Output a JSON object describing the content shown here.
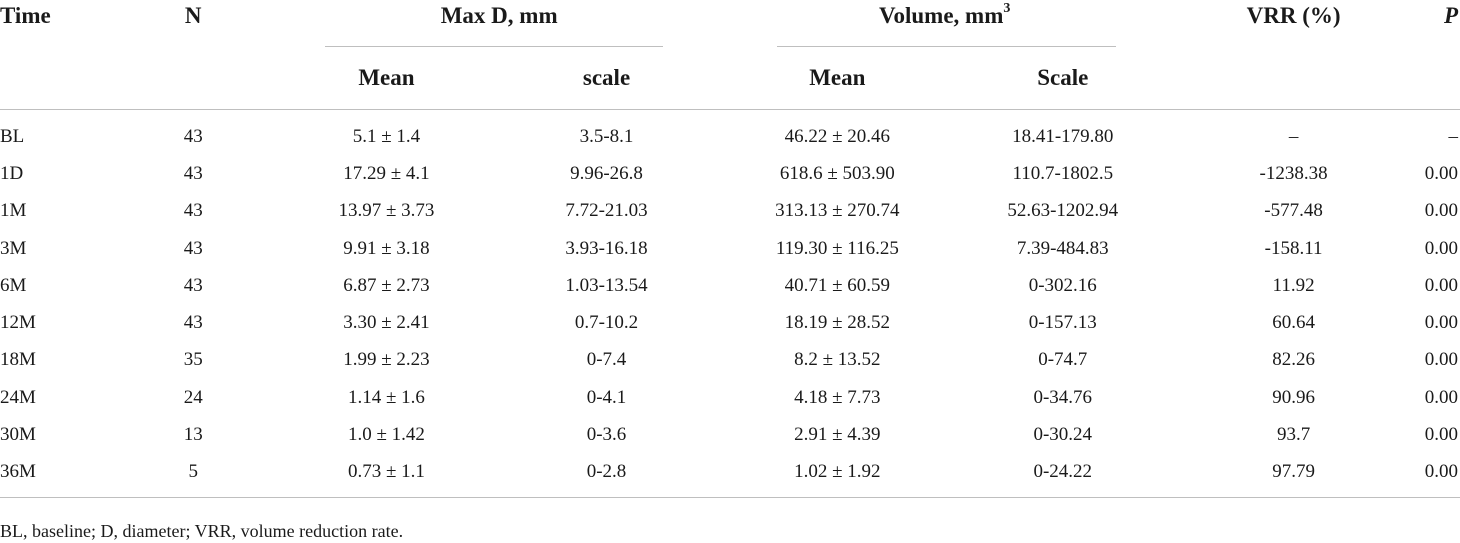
{
  "table": {
    "headers": {
      "time": "Time",
      "n": "N",
      "max_d_group": "Max D, mm",
      "volume_group": "Volume, mm",
      "volume_group_sup": "3",
      "vrr": "VRR (%)",
      "p": "P",
      "max_d_mean": "Mean",
      "max_d_scale": "scale",
      "volume_mean": "Mean",
      "volume_scale": "Scale"
    },
    "rows": [
      {
        "time": "BL",
        "n": "43",
        "max_d_mean": "5.1 ± 1.4",
        "max_d_scale": "3.5-8.1",
        "volume_mean": "46.22 ± 20.46",
        "volume_scale": "18.41-179.80",
        "vrr": "–",
        "p": "–"
      },
      {
        "time": "1D",
        "n": "43",
        "max_d_mean": "17.29 ± 4.1",
        "max_d_scale": "9.96-26.8",
        "volume_mean": "618.6 ± 503.90",
        "volume_scale": "110.7-1802.5",
        "vrr": "-1238.38",
        "p": "0.00"
      },
      {
        "time": "1M",
        "n": "43",
        "max_d_mean": "13.97 ± 3.73",
        "max_d_scale": "7.72-21.03",
        "volume_mean": "313.13 ± 270.74",
        "volume_scale": "52.63-1202.94",
        "vrr": "-577.48",
        "p": "0.00"
      },
      {
        "time": "3M",
        "n": "43",
        "max_d_mean": "9.91 ± 3.18",
        "max_d_scale": "3.93-16.18",
        "volume_mean": "119.30 ± 116.25",
        "volume_scale": "7.39-484.83",
        "vrr": "-158.11",
        "p": "0.00"
      },
      {
        "time": "6M",
        "n": "43",
        "max_d_mean": "6.87 ± 2.73",
        "max_d_scale": "1.03-13.54",
        "volume_mean": "40.71 ± 60.59",
        "volume_scale": "0-302.16",
        "vrr": "11.92",
        "p": "0.00"
      },
      {
        "time": "12M",
        "n": "43",
        "max_d_mean": "3.30 ± 2.41",
        "max_d_scale": "0.7-10.2",
        "volume_mean": "18.19 ± 28.52",
        "volume_scale": "0-157.13",
        "vrr": "60.64",
        "p": "0.00"
      },
      {
        "time": "18M",
        "n": "35",
        "max_d_mean": "1.99 ± 2.23",
        "max_d_scale": "0-7.4",
        "volume_mean": "8.2 ± 13.52",
        "volume_scale": "0-74.7",
        "vrr": "82.26",
        "p": "0.00"
      },
      {
        "time": "24M",
        "n": "24",
        "max_d_mean": "1.14 ± 1.6",
        "max_d_scale": "0-4.1",
        "volume_mean": "4.18 ± 7.73",
        "volume_scale": "0-34.76",
        "vrr": "90.96",
        "p": "0.00"
      },
      {
        "time": "30M",
        "n": "13",
        "max_d_mean": "1.0 ± 1.42",
        "max_d_scale": "0-3.6",
        "volume_mean": "2.91 ± 4.39",
        "volume_scale": "0-30.24",
        "vrr": "93.7",
        "p": "0.00"
      },
      {
        "time": "36M",
        "n": "5",
        "max_d_mean": "0.73 ± 1.1",
        "max_d_scale": "0-2.8",
        "volume_mean": "1.02 ± 1.92",
        "volume_scale": "0-24.22",
        "vrr": "97.79",
        "p": "0.00"
      }
    ]
  },
  "footnote": "BL, baseline; D, diameter; VRR, volume reduction rate."
}
